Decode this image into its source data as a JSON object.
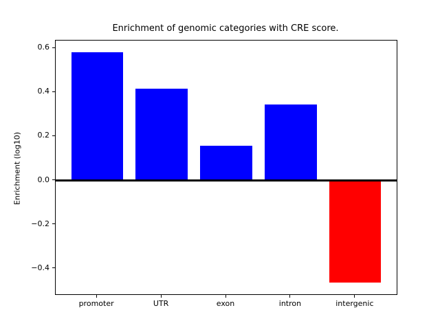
{
  "figure": {
    "background": "#ffffff",
    "frame_color": "#000000"
  },
  "chart_data": {
    "type": "bar",
    "title": "Enrichment of genomic categories with CRE score.",
    "xlabel": "",
    "ylabel": "Enrichment (log10)",
    "categories": [
      "promoter",
      "UTR",
      "exon",
      "intron",
      "intergenic"
    ],
    "values": [
      0.583,
      0.417,
      0.158,
      0.344,
      -0.463
    ],
    "bar_colors": [
      "#0000ff",
      "#0000ff",
      "#0000ff",
      "#0000ff",
      "#ff0000"
    ],
    "positive_color": "#0000ff",
    "negative_color": "#ff0000",
    "bar_width_units": 0.8,
    "xlim": [
      -0.64,
      4.64
    ],
    "ylim": [
      -0.516,
      0.635
    ],
    "yticks": [
      {
        "value": 0.6,
        "label": "0.6"
      },
      {
        "value": 0.4,
        "label": "0.4"
      },
      {
        "value": 0.2,
        "label": "0.2"
      },
      {
        "value": 0.0,
        "label": "0.0"
      },
      {
        "value": -0.2,
        "label": "−0.2"
      },
      {
        "value": -0.4,
        "label": "−0.4"
      }
    ],
    "zero_line": {
      "value": 0.0,
      "color": "#000000"
    },
    "grid": false,
    "legend_position": "none"
  }
}
